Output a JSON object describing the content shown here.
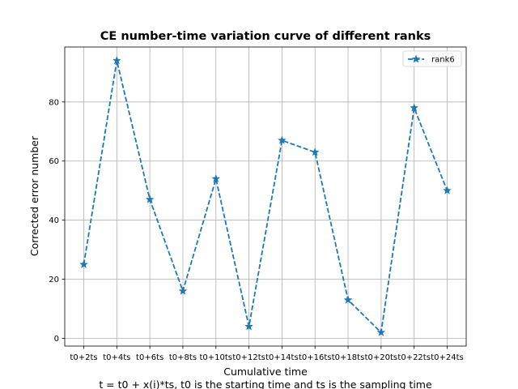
{
  "chart_data": {
    "type": "line",
    "title": "CE number-time variation curve of different ranks",
    "xlabel": "Cumulative time",
    "ylabel": "Corrected error number",
    "caption": "t = t0 + x(i)*ts, t0 is the starting time and ts is the sampling time",
    "categories": [
      "t0+2ts",
      "t0+4ts",
      "t0+6ts",
      "t0+8ts",
      "t0+10ts",
      "t0+12ts",
      "t0+14ts",
      "t0+16ts",
      "t0+18ts",
      "t0+20ts",
      "t0+22ts",
      "t0+24ts"
    ],
    "series": [
      {
        "name": "rank6",
        "values": [
          25,
          94,
          47,
          16,
          54,
          4,
          67,
          63,
          13,
          2,
          78,
          50
        ],
        "color": "#1f77b4",
        "line_style": "dashed",
        "marker": "star"
      }
    ],
    "ylim": [
      -2.6,
      98.6
    ],
    "yticks": [
      0,
      20,
      40,
      60,
      80
    ],
    "grid": true,
    "legend_position": "top-right"
  }
}
